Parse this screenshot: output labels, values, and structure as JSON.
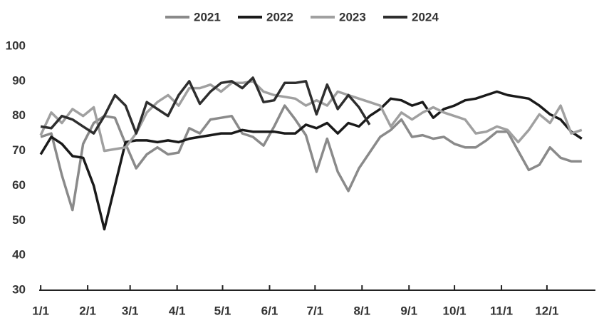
{
  "chart_data": {
    "type": "line",
    "x": [
      1,
      8,
      15,
      22,
      29,
      36,
      43,
      50,
      57,
      64,
      71,
      78,
      85,
      92,
      99,
      106,
      113,
      120,
      127,
      134,
      141,
      148,
      155,
      162,
      169,
      176,
      183,
      190,
      197,
      204,
      211,
      218,
      225,
      232,
      239,
      246,
      253,
      260,
      267,
      274,
      281,
      288,
      295,
      302,
      309,
      316,
      323,
      330,
      337,
      344,
      351,
      358
    ],
    "series": [
      {
        "name": "2021",
        "color": "#8a8a8a",
        "values": [
          74,
          75,
          63,
          53,
          72,
          78,
          80,
          79.5,
          72,
          65,
          69,
          71,
          69,
          69.5,
          76.5,
          75,
          79,
          79.5,
          80,
          75,
          74,
          71.5,
          77,
          83,
          79,
          74.5,
          64,
          73.5,
          64,
          58.5,
          65,
          69.5,
          74,
          76,
          79,
          74,
          74.5,
          73.5,
          74,
          72,
          71,
          71,
          73,
          75.5,
          75.5,
          70,
          64.5,
          66,
          71,
          68,
          67,
          67
        ]
      },
      {
        "name": "2022",
        "color": "#1a1a1a",
        "values": [
          69,
          74,
          72,
          68.5,
          68,
          60,
          47.5,
          60,
          72.5,
          73,
          73,
          72.5,
          73,
          72.5,
          73.5,
          74,
          74.5,
          75,
          75,
          76,
          75.5,
          75.5,
          75.5,
          75,
          75,
          77.5,
          76.5,
          78,
          75,
          78,
          77,
          80,
          82,
          85,
          84.5,
          83,
          84,
          79.5,
          82,
          83,
          84.5,
          85,
          86,
          87,
          86,
          85.5,
          85,
          83,
          80.5,
          79,
          75.5,
          73.5
        ]
      },
      {
        "name": "2023",
        "color": "#a0a0a0",
        "values": [
          74.5,
          81,
          78,
          82,
          80,
          82.5,
          70,
          70.5,
          71,
          75,
          81,
          84,
          86,
          83,
          88,
          88,
          89,
          87,
          89.5,
          89.5,
          90,
          87,
          86,
          85.5,
          85,
          83,
          84.5,
          83,
          87,
          86,
          85,
          84,
          83,
          77,
          81,
          79,
          81,
          82.5,
          81,
          80,
          79,
          75,
          75.5,
          77,
          76,
          72.5,
          76,
          80.5,
          78,
          83,
          75,
          76
        ]
      },
      {
        "name": "2024",
        "color": "#2e2e2e",
        "values": [
          77,
          76.5,
          80,
          79,
          77,
          75,
          80,
          86,
          83,
          75,
          84,
          82,
          80,
          86,
          90,
          83.5,
          87,
          89.5,
          90,
          88,
          91,
          84,
          84.5,
          89.5,
          89.5,
          90,
          80.5,
          89,
          82,
          86,
          82.5,
          77.5,
          null,
          null,
          null,
          null,
          null,
          null,
          null,
          null,
          null,
          null,
          null,
          null,
          null,
          null,
          null,
          null,
          null,
          null,
          null,
          null
        ]
      }
    ],
    "xlim": [
      0,
      367
    ],
    "xticks": [
      {
        "value": 1,
        "label": "1/1"
      },
      {
        "value": 32,
        "label": "2/1"
      },
      {
        "value": 60,
        "label": "3/1"
      },
      {
        "value": 91,
        "label": "4/1"
      },
      {
        "value": 121,
        "label": "5/1"
      },
      {
        "value": 152,
        "label": "6/1"
      },
      {
        "value": 182,
        "label": "7/1"
      },
      {
        "value": 213,
        "label": "8/1"
      },
      {
        "value": 244,
        "label": "9/1"
      },
      {
        "value": 274,
        "label": "10/1"
      },
      {
        "value": 305,
        "label": "11/1"
      },
      {
        "value": 335,
        "label": "12/1"
      }
    ],
    "ylim": [
      30,
      100
    ],
    "yticks": [
      30,
      40,
      50,
      60,
      70,
      80,
      90,
      100
    ],
    "legend": "top"
  }
}
